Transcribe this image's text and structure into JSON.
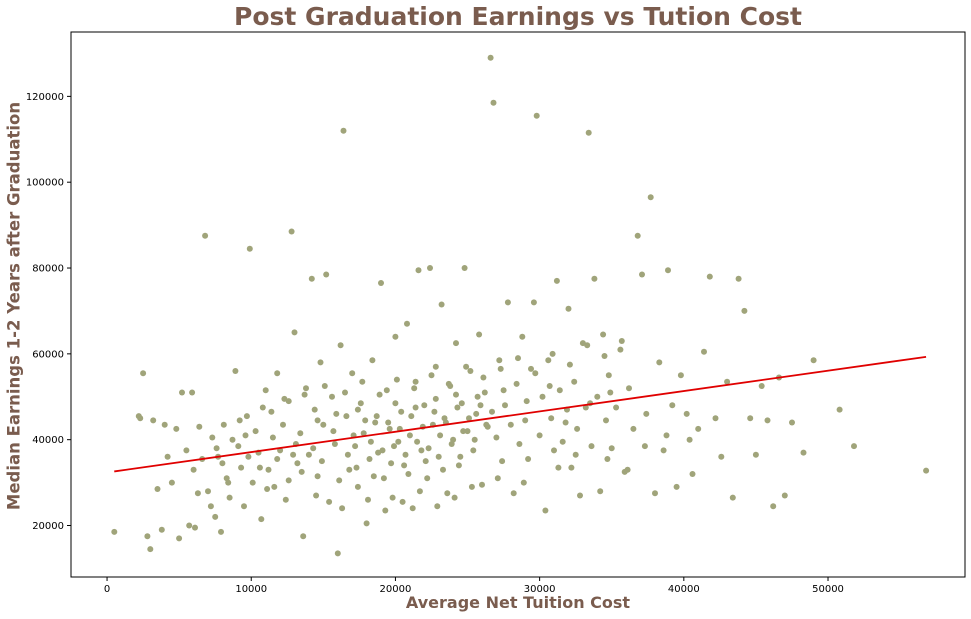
{
  "chart_data": {
    "type": "scatter",
    "title": "Post Graduation Earnings vs Tution Cost",
    "xlabel": "Average Net Tuition Cost",
    "ylabel": "Median Earnings 1-2 Years after Graduation",
    "xlim": [
      -2500,
      59500
    ],
    "ylim": [
      8000,
      135000
    ],
    "xticks": [
      0,
      10000,
      20000,
      30000,
      40000,
      50000
    ],
    "yticks": [
      20000,
      40000,
      60000,
      80000,
      100000,
      120000
    ],
    "grid": false,
    "point_color": "#a0a47a",
    "trend_color": "#e00000",
    "trendline": {
      "x": [
        500,
        56800
      ],
      "y": [
        32600,
        59300
      ]
    },
    "points": [
      [
        500,
        18500
      ],
      [
        2300,
        45000
      ],
      [
        2500,
        55500
      ],
      [
        2800,
        17500
      ],
      [
        3000,
        14500
      ],
      [
        3200,
        44500
      ],
      [
        3500,
        28500
      ],
      [
        3800,
        19000
      ],
      [
        4000,
        43500
      ],
      [
        4200,
        36000
      ],
      [
        4500,
        30000
      ],
      [
        5000,
        17000
      ],
      [
        5200,
        51000
      ],
      [
        5500,
        37500
      ],
      [
        5700,
        20000
      ],
      [
        5900,
        51000
      ],
      [
        6100,
        19500
      ],
      [
        6400,
        43000
      ],
      [
        6600,
        35500
      ],
      [
        6800,
        87500
      ],
      [
        7000,
        28000
      ],
      [
        7300,
        40500
      ],
      [
        7500,
        22000
      ],
      [
        7700,
        36000
      ],
      [
        7900,
        18500
      ],
      [
        8100,
        43500
      ],
      [
        8300,
        31000
      ],
      [
        8500,
        26500
      ],
      [
        8700,
        40000
      ],
      [
        8900,
        56000
      ],
      [
        9100,
        38500
      ],
      [
        9300,
        33500
      ],
      [
        9500,
        24500
      ],
      [
        9700,
        45500
      ],
      [
        9900,
        84500
      ],
      [
        10100,
        30000
      ],
      [
        10300,
        42000
      ],
      [
        10500,
        37000
      ],
      [
        10700,
        21500
      ],
      [
        11000,
        51500
      ],
      [
        11200,
        33000
      ],
      [
        11400,
        46500
      ],
      [
        11600,
        29000
      ],
      [
        11800,
        55500
      ],
      [
        12000,
        37500
      ],
      [
        12200,
        43500
      ],
      [
        12400,
        26000
      ],
      [
        12600,
        49000
      ],
      [
        12800,
        88500
      ],
      [
        13000,
        65000
      ],
      [
        13200,
        34500
      ],
      [
        13400,
        41500
      ],
      [
        13600,
        17500
      ],
      [
        13800,
        52000
      ],
      [
        14000,
        36500
      ],
      [
        14200,
        77500
      ],
      [
        14400,
        47000
      ],
      [
        14600,
        31500
      ],
      [
        14800,
        58000
      ],
      [
        15000,
        43500
      ],
      [
        15200,
        78500
      ],
      [
        15400,
        25500
      ],
      [
        15600,
        50000
      ],
      [
        15800,
        39000
      ],
      [
        16000,
        13500
      ],
      [
        16200,
        62000
      ],
      [
        16400,
        112000
      ],
      [
        16600,
        45500
      ],
      [
        16800,
        33000
      ],
      [
        17000,
        55500
      ],
      [
        17200,
        38500
      ],
      [
        17400,
        29000
      ],
      [
        17600,
        48500
      ],
      [
        17800,
        41500
      ],
      [
        18000,
        20500
      ],
      [
        18200,
        35500
      ],
      [
        18400,
        58500
      ],
      [
        18600,
        44000
      ],
      [
        18800,
        37000
      ],
      [
        19000,
        76500
      ],
      [
        19200,
        31000
      ],
      [
        19400,
        51500
      ],
      [
        19600,
        42500
      ],
      [
        19800,
        26500
      ],
      [
        20000,
        64000
      ],
      [
        20200,
        39500
      ],
      [
        20400,
        46500
      ],
      [
        20600,
        34000
      ],
      [
        20800,
        67000
      ],
      [
        21000,
        41000
      ],
      [
        21200,
        24000
      ],
      [
        21400,
        53500
      ],
      [
        21600,
        79500
      ],
      [
        21800,
        37500
      ],
      [
        22000,
        48000
      ],
      [
        22200,
        31000
      ],
      [
        22400,
        80000
      ],
      [
        22600,
        43500
      ],
      [
        22800,
        57000
      ],
      [
        23000,
        36000
      ],
      [
        23200,
        71500
      ],
      [
        23400,
        45000
      ],
      [
        23600,
        27500
      ],
      [
        23800,
        52500
      ],
      [
        24000,
        40000
      ],
      [
        24200,
        62500
      ],
      [
        24400,
        34000
      ],
      [
        24600,
        48500
      ],
      [
        24800,
        80000
      ],
      [
        25000,
        42000
      ],
      [
        25200,
        56000
      ],
      [
        25400,
        37500
      ],
      [
        25600,
        46000
      ],
      [
        25800,
        64500
      ],
      [
        26000,
        29500
      ],
      [
        26200,
        51000
      ],
      [
        26400,
        43000
      ],
      [
        26600,
        129000
      ],
      [
        26800,
        118500
      ],
      [
        27000,
        40500
      ],
      [
        27200,
        58500
      ],
      [
        27400,
        35000
      ],
      [
        27600,
        48000
      ],
      [
        27800,
        72000
      ],
      [
        28000,
        43500
      ],
      [
        28200,
        27500
      ],
      [
        28400,
        53000
      ],
      [
        28600,
        39000
      ],
      [
        28800,
        64000
      ],
      [
        29000,
        44500
      ],
      [
        29200,
        35500
      ],
      [
        29400,
        56500
      ],
      [
        29600,
        72000
      ],
      [
        29800,
        115500
      ],
      [
        30000,
        41000
      ],
      [
        30200,
        50000
      ],
      [
        30400,
        23500
      ],
      [
        30600,
        58500
      ],
      [
        30800,
        45000
      ],
      [
        31000,
        37500
      ],
      [
        31200,
        77000
      ],
      [
        31400,
        51500
      ],
      [
        31600,
        39500
      ],
      [
        31800,
        44000
      ],
      [
        32000,
        70500
      ],
      [
        32200,
        33500
      ],
      [
        32400,
        53500
      ],
      [
        32600,
        42500
      ],
      [
        32800,
        27000
      ],
      [
        33000,
        62500
      ],
      [
        33200,
        47500
      ],
      [
        33400,
        111500
      ],
      [
        33600,
        38500
      ],
      [
        33800,
        77500
      ],
      [
        34000,
        50000
      ],
      [
        34200,
        28000
      ],
      [
        34400,
        64500
      ],
      [
        34600,
        44500
      ],
      [
        34800,
        55000
      ],
      [
        35000,
        38000
      ],
      [
        35300,
        47500
      ],
      [
        35600,
        61000
      ],
      [
        35900,
        32500
      ],
      [
        36200,
        52000
      ],
      [
        36500,
        42500
      ],
      [
        36800,
        87500
      ],
      [
        37100,
        78500
      ],
      [
        37400,
        46000
      ],
      [
        37700,
        96500
      ],
      [
        38000,
        27500
      ],
      [
        38300,
        58000
      ],
      [
        38600,
        37500
      ],
      [
        38900,
        79500
      ],
      [
        39200,
        48000
      ],
      [
        39500,
        29000
      ],
      [
        39800,
        55000
      ],
      [
        40200,
        46000
      ],
      [
        40600,
        32000
      ],
      [
        41000,
        42500
      ],
      [
        41400,
        60500
      ],
      [
        41800,
        78000
      ],
      [
        42200,
        45000
      ],
      [
        42600,
        36000
      ],
      [
        43000,
        53500
      ],
      [
        43400,
        26500
      ],
      [
        43800,
        77500
      ],
      [
        44200,
        70000
      ],
      [
        44600,
        45000
      ],
      [
        45000,
        36500
      ],
      [
        45400,
        52500
      ],
      [
        45800,
        44500
      ],
      [
        46200,
        24500
      ],
      [
        46600,
        54500
      ],
      [
        47000,
        27000
      ],
      [
        47500,
        44000
      ],
      [
        48300,
        37000
      ],
      [
        49000,
        58500
      ],
      [
        50800,
        47000
      ],
      [
        51800,
        38500
      ],
      [
        56800,
        32800
      ],
      [
        2200,
        45500
      ],
      [
        4800,
        42500
      ],
      [
        8000,
        34500
      ],
      [
        9600,
        41000
      ],
      [
        11500,
        40500
      ],
      [
        12900,
        36500
      ],
      [
        14300,
        38000
      ],
      [
        15700,
        42000
      ],
      [
        16700,
        36500
      ],
      [
        17100,
        41000
      ],
      [
        17900,
        44500
      ],
      [
        18300,
        39500
      ],
      [
        19100,
        37500
      ],
      [
        19500,
        44000
      ],
      [
        19900,
        38500
      ],
      [
        20300,
        42500
      ],
      [
        20700,
        36500
      ],
      [
        21100,
        45500
      ],
      [
        21500,
        39500
      ],
      [
        21900,
        43000
      ],
      [
        22300,
        38000
      ],
      [
        22700,
        46500
      ],
      [
        23100,
        41000
      ],
      [
        23500,
        44000
      ],
      [
        23900,
        39000
      ],
      [
        24300,
        47500
      ],
      [
        24700,
        42000
      ],
      [
        25100,
        45000
      ],
      [
        25500,
        40000
      ],
      [
        25900,
        48000
      ],
      [
        26300,
        43500
      ],
      [
        26700,
        46500
      ],
      [
        10600,
        33500
      ],
      [
        11800,
        35500
      ],
      [
        13500,
        32500
      ],
      [
        14900,
        35000
      ],
      [
        16100,
        30500
      ],
      [
        17300,
        33500
      ],
      [
        18500,
        31500
      ],
      [
        19700,
        34500
      ],
      [
        20900,
        32000
      ],
      [
        22100,
        35000
      ],
      [
        23300,
        33000
      ],
      [
        24500,
        36000
      ],
      [
        9200,
        44500
      ],
      [
        10800,
        47500
      ],
      [
        12300,
        49500
      ],
      [
        13700,
        50500
      ],
      [
        15100,
        52500
      ],
      [
        16500,
        51000
      ],
      [
        17700,
        53500
      ],
      [
        18900,
        50500
      ],
      [
        20100,
        54000
      ],
      [
        21300,
        52000
      ],
      [
        22500,
        55000
      ],
      [
        23700,
        53000
      ],
      [
        24900,
        57000
      ],
      [
        26100,
        54500
      ],
      [
        27300,
        56500
      ],
      [
        28500,
        59000
      ],
      [
        29700,
        55500
      ],
      [
        30900,
        60000
      ],
      [
        32100,
        57500
      ],
      [
        33300,
        62000
      ],
      [
        34500,
        59500
      ],
      [
        35700,
        63000
      ],
      [
        14500,
        27000
      ],
      [
        16300,
        24000
      ],
      [
        18100,
        26000
      ],
      [
        19300,
        23500
      ],
      [
        20500,
        25500
      ],
      [
        21700,
        28000
      ],
      [
        22900,
        24500
      ],
      [
        24100,
        26500
      ],
      [
        25300,
        29000
      ],
      [
        27100,
        31000
      ],
      [
        28900,
        30000
      ],
      [
        31300,
        33500
      ],
      [
        32500,
        36500
      ],
      [
        34700,
        35500
      ],
      [
        36100,
        33000
      ],
      [
        37300,
        38500
      ],
      [
        38800,
        41000
      ],
      [
        40400,
        40000
      ],
      [
        12600,
        30500
      ],
      [
        11100,
        28500
      ],
      [
        8400,
        30000
      ],
      [
        7200,
        24500
      ],
      [
        6300,
        27500
      ],
      [
        6000,
        33000
      ],
      [
        7600,
        38000
      ],
      [
        9800,
        36000
      ],
      [
        13100,
        39000
      ],
      [
        14600,
        44500
      ],
      [
        15900,
        46000
      ],
      [
        17400,
        47000
      ],
      [
        18700,
        45500
      ],
      [
        20000,
        48500
      ],
      [
        21400,
        47500
      ],
      [
        22800,
        49500
      ],
      [
        24200,
        50500
      ],
      [
        25700,
        50000
      ],
      [
        27500,
        51500
      ],
      [
        29100,
        49000
      ],
      [
        30700,
        52500
      ],
      [
        31900,
        47000
      ],
      [
        33500,
        48500
      ],
      [
        34900,
        51000
      ]
    ]
  }
}
